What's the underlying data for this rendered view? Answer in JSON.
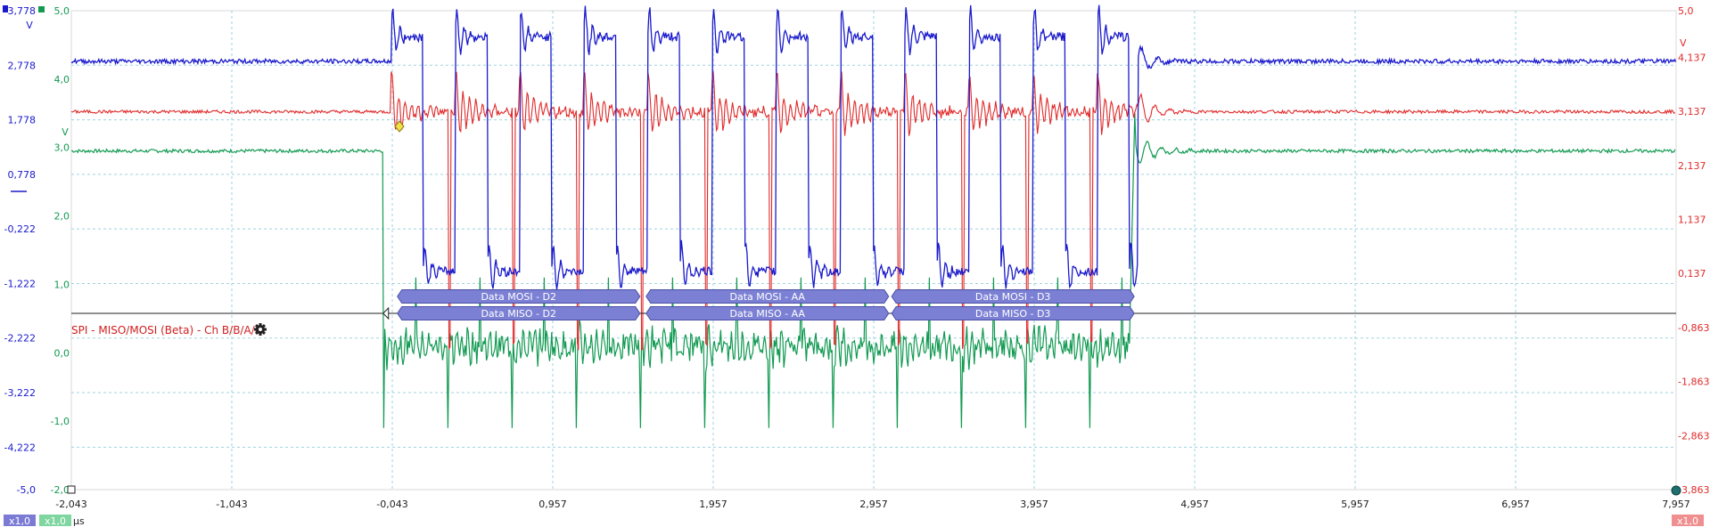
{
  "chart_data": {
    "type": "line",
    "x_unit": "µs",
    "xlim": [
      -2.043,
      7.957
    ],
    "x_ticks": [
      "-2,043",
      "-1,043",
      "-0,043",
      "0,957",
      "1,957",
      "2,957",
      "3,957",
      "4,957",
      "5,957",
      "6,957",
      "7,957"
    ],
    "axes": {
      "blue": {
        "unit": "V",
        "ylim": [
          -5.0,
          3.778
        ],
        "ticks": [
          "3,778",
          "2,778",
          "1,778",
          "0,778",
          "-0,222",
          "-1,222",
          "-2,222",
          "-3,222",
          "-4,222",
          "-5,0"
        ],
        "tick_values": [
          3.778,
          2.778,
          1.778,
          0.778,
          -0.222,
          -1.222,
          -2.222,
          -3.222,
          -4.222,
          -5.0
        ],
        "color": "#1a1acc"
      },
      "green": {
        "unit": "V",
        "ylim": [
          -2.0,
          5.0
        ],
        "ticks": [
          "5,0",
          "4,0",
          "3,0",
          "2,0",
          "1,0",
          "0,0",
          "-1,0",
          "-2,0"
        ],
        "tick_values": [
          5,
          4,
          3,
          2,
          1,
          0,
          -1,
          -2
        ],
        "color": "#129a52"
      },
      "red": {
        "unit": "V",
        "ylim": [
          -3.863,
          5.0
        ],
        "ticks": [
          "5,0",
          "4,137",
          "3,137",
          "2,137",
          "1,137",
          "0,137",
          "-0,863",
          "-1,863",
          "-2,863",
          "-3,863"
        ],
        "tick_values": [
          5.0,
          4.137,
          3.137,
          2.137,
          1.137,
          0.137,
          -0.863,
          -1.863,
          -2.863,
          -3.863
        ],
        "color": "#e02a2a"
      }
    },
    "series": [
      {
        "axis": "blue",
        "idle_level": 2.85,
        "high": 3.3,
        "low": -1.0,
        "burst_start": -0.05,
        "burst_end": 4.6,
        "edges_per_us": 2.5
      },
      {
        "axis": "red",
        "idle_level": 3.13,
        "spike_high": 3.8,
        "spike_low": -1.2,
        "burst_start": -0.05,
        "burst_end": 4.6
      },
      {
        "axis": "green",
        "idle_level": 2.95,
        "active_level": 0.1,
        "burst_start": -0.1,
        "burst_end": 4.55
      }
    ],
    "decoder": {
      "title": "SPI - MISO/MOSI (Beta) - Ch B/B/A/C",
      "bus_x_range": [
        -2.043,
        7.957
      ],
      "packets": [
        {
          "x_start": 0.1,
          "x_end": 1.5,
          "mosi": "Data MOSI - D2",
          "miso": "Data MISO - D2"
        },
        {
          "x_start": 1.65,
          "x_end": 3.05,
          "mosi": "Data MOSI - AA",
          "miso": "Data MISO - AA"
        },
        {
          "x_start": 3.18,
          "x_end": 4.58,
          "mosi": "Data MOSI - D3",
          "miso": "Data MISO - D3"
        }
      ]
    },
    "bottom_badges": [
      {
        "label": "x1,0",
        "color": "#7b7bd6"
      },
      {
        "label": "x1,0",
        "color": "#7fd6a0"
      },
      {
        "label": "x1,0",
        "color": "#f08f8f"
      }
    ],
    "grid": true
  }
}
